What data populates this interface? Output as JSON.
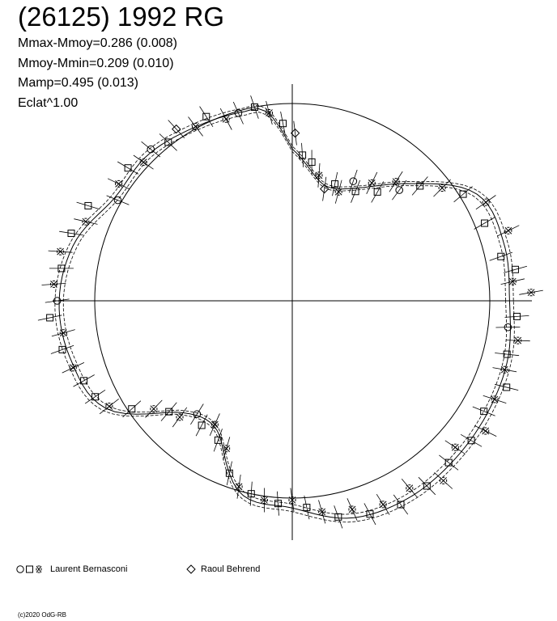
{
  "header": {
    "title": "(26125) 1992 RG",
    "stats": [
      "Mmax-Mmoy=0.286 (0.008)",
      "Mmoy-Mmin=0.209 (0.010)",
      "Mamp=0.495 (0.013)",
      "Eclat^1.00"
    ]
  },
  "legend": [
    {
      "label": "Laurent Bernasconi",
      "markers": [
        "circle",
        "square",
        "star"
      ]
    },
    {
      "label": "Raoul Behrend",
      "markers": [
        "diamond"
      ]
    }
  ],
  "footer": {
    "copyright": "(c)2020 OdG-RB"
  },
  "chart_data": {
    "type": "polar-lightcurve",
    "title": "(26125) 1992 RG",
    "r_unit": "flux relative to mean",
    "reference_circle_r": 1.0,
    "angle_convention": "rotational phase, 0 at right, increasing counterclockwise",
    "curve_phase_deg": [
      0,
      15,
      30,
      45,
      60,
      75,
      90,
      98,
      105,
      120,
      135,
      150,
      165,
      180,
      195,
      210,
      225,
      240,
      255,
      270,
      285,
      300,
      315,
      330,
      345,
      360
    ],
    "curve_r": [
      1.1,
      1.11,
      1.08,
      0.84,
      0.66,
      0.61,
      0.77,
      0.97,
      0.99,
      1.01,
      1.04,
      1.04,
      1.14,
      1.18,
      1.16,
      1.09,
      0.8,
      0.76,
      1.01,
      1.05,
      1.14,
      1.16,
      1.15,
      1.14,
      1.13,
      1.1
    ],
    "points": [
      {
        "phase": 5,
        "r": 1.12,
        "m": "star"
      },
      {
        "phase": 8,
        "r": 1.14,
        "m": "square"
      },
      {
        "phase": 12,
        "r": 1.08,
        "m": "square"
      },
      {
        "phase": 18,
        "r": 1.15,
        "m": "star"
      },
      {
        "phase": 22,
        "r": 1.05,
        "m": "square"
      },
      {
        "phase": 27,
        "r": 1.1,
        "m": "star"
      },
      {
        "phase": 32,
        "r": 1.02,
        "m": "square"
      },
      {
        "phase": 37,
        "r": 0.95,
        "m": "star"
      },
      {
        "phase": 42,
        "r": 0.87,
        "m": "square"
      },
      {
        "phase": 46,
        "r": 0.78,
        "m": "circle"
      },
      {
        "phase": 49,
        "r": 0.8,
        "m": "star"
      },
      {
        "phase": 52,
        "r": 0.7,
        "m": "square"
      },
      {
        "phase": 56,
        "r": 0.72,
        "m": "star"
      },
      {
        "phase": 60,
        "r": 0.64,
        "m": "square"
      },
      {
        "phase": 63,
        "r": 0.68,
        "m": "circle"
      },
      {
        "phase": 67,
        "r": 0.6,
        "m": "star"
      },
      {
        "phase": 70,
        "r": 0.63,
        "m": "square"
      },
      {
        "phase": 74,
        "r": 0.59,
        "m": "diamond"
      },
      {
        "phase": 78,
        "r": 0.65,
        "m": "star"
      },
      {
        "phase": 82,
        "r": 0.71,
        "m": "square"
      },
      {
        "phase": 86,
        "r": 0.74,
        "m": "square"
      },
      {
        "phase": 89,
        "r": 0.85,
        "m": "diamond"
      },
      {
        "phase": 93,
        "r": 0.9,
        "m": "square"
      },
      {
        "phase": 97,
        "r": 0.96,
        "m": "star"
      },
      {
        "phase": 101,
        "r": 1.0,
        "m": "square"
      },
      {
        "phase": 106,
        "r": 0.99,
        "m": "circle"
      },
      {
        "phase": 110,
        "r": 0.98,
        "m": "star"
      },
      {
        "phase": 115,
        "r": 1.03,
        "m": "square"
      },
      {
        "phase": 119,
        "r": 1.01,
        "m": "star"
      },
      {
        "phase": 124,
        "r": 1.05,
        "m": "diamond"
      },
      {
        "phase": 128,
        "r": 1.02,
        "m": "square"
      },
      {
        "phase": 133,
        "r": 1.05,
        "m": "circle"
      },
      {
        "phase": 137,
        "r": 1.03,
        "m": "star"
      },
      {
        "phase": 141,
        "r": 1.07,
        "m": "square"
      },
      {
        "phase": 146,
        "r": 1.06,
        "m": "star"
      },
      {
        "phase": 150,
        "r": 1.02,
        "m": "circle"
      },
      {
        "phase": 155,
        "r": 1.14,
        "m": "square"
      },
      {
        "phase": 159,
        "r": 1.12,
        "m": "star"
      },
      {
        "phase": 163,
        "r": 1.17,
        "m": "square"
      },
      {
        "phase": 168,
        "r": 1.2,
        "m": "star"
      },
      {
        "phase": 172,
        "r": 1.18,
        "m": "square"
      },
      {
        "phase": 176,
        "r": 1.21,
        "m": "star"
      },
      {
        "phase": 180,
        "r": 1.19,
        "m": "circle"
      },
      {
        "phase": 184,
        "r": 1.23,
        "m": "square"
      },
      {
        "phase": 188,
        "r": 1.17,
        "m": "star"
      },
      {
        "phase": 192,
        "r": 1.19,
        "m": "square"
      },
      {
        "phase": 197,
        "r": 1.16,
        "m": "star"
      },
      {
        "phase": 201,
        "r": 1.13,
        "m": "square"
      },
      {
        "phase": 206,
        "r": 1.11,
        "m": "square"
      },
      {
        "phase": 210,
        "r": 1.07,
        "m": "star"
      },
      {
        "phase": 214,
        "r": 0.98,
        "m": "square"
      },
      {
        "phase": 218,
        "r": 0.89,
        "m": "star"
      },
      {
        "phase": 222,
        "r": 0.84,
        "m": "square"
      },
      {
        "phase": 226,
        "r": 0.82,
        "m": "star"
      },
      {
        "phase": 230,
        "r": 0.75,
        "m": "circle"
      },
      {
        "phase": 234,
        "r": 0.78,
        "m": "square"
      },
      {
        "phase": 238,
        "r": 0.74,
        "m": "star"
      },
      {
        "phase": 242,
        "r": 0.8,
        "m": "square"
      },
      {
        "phase": 246,
        "r": 0.82,
        "m": "star"
      },
      {
        "phase": 250,
        "r": 0.93,
        "m": "square"
      },
      {
        "phase": 254,
        "r": 0.98,
        "m": "star"
      },
      {
        "phase": 258,
        "r": 1.0,
        "m": "square"
      },
      {
        "phase": 262,
        "r": 1.02,
        "m": "star"
      },
      {
        "phase": 266,
        "r": 1.03,
        "m": "square"
      },
      {
        "phase": 270,
        "r": 1.01,
        "m": "star"
      },
      {
        "phase": 274,
        "r": 1.05,
        "m": "square"
      },
      {
        "phase": 278,
        "r": 1.08,
        "m": "star"
      },
      {
        "phase": 282,
        "r": 1.12,
        "m": "square"
      },
      {
        "phase": 286,
        "r": 1.1,
        "m": "star"
      },
      {
        "phase": 290,
        "r": 1.15,
        "m": "square"
      },
      {
        "phase": 294,
        "r": 1.13,
        "m": "star"
      },
      {
        "phase": 298,
        "r": 1.17,
        "m": "square"
      },
      {
        "phase": 302,
        "r": 1.12,
        "m": "star"
      },
      {
        "phase": 306,
        "r": 1.16,
        "m": "square"
      },
      {
        "phase": 310,
        "r": 1.19,
        "m": "star"
      },
      {
        "phase": 314,
        "r": 1.14,
        "m": "square"
      },
      {
        "phase": 318,
        "r": 1.11,
        "m": "star"
      },
      {
        "phase": 322,
        "r": 1.15,
        "m": "square"
      },
      {
        "phase": 326,
        "r": 1.18,
        "m": "star"
      },
      {
        "phase": 330,
        "r": 1.12,
        "m": "square"
      },
      {
        "phase": 334,
        "r": 1.14,
        "m": "star"
      },
      {
        "phase": 338,
        "r": 1.17,
        "m": "square"
      },
      {
        "phase": 342,
        "r": 1.13,
        "m": "star"
      },
      {
        "phase": 346,
        "r": 1.12,
        "m": "square"
      },
      {
        "phase": 350,
        "r": 1.16,
        "m": "star"
      },
      {
        "phase": 353,
        "r": 1.1,
        "m": "circle"
      },
      {
        "phase": 356,
        "r": 1.14,
        "m": "square"
      },
      {
        "phase": 2,
        "r": 1.21,
        "m": "star"
      }
    ]
  }
}
